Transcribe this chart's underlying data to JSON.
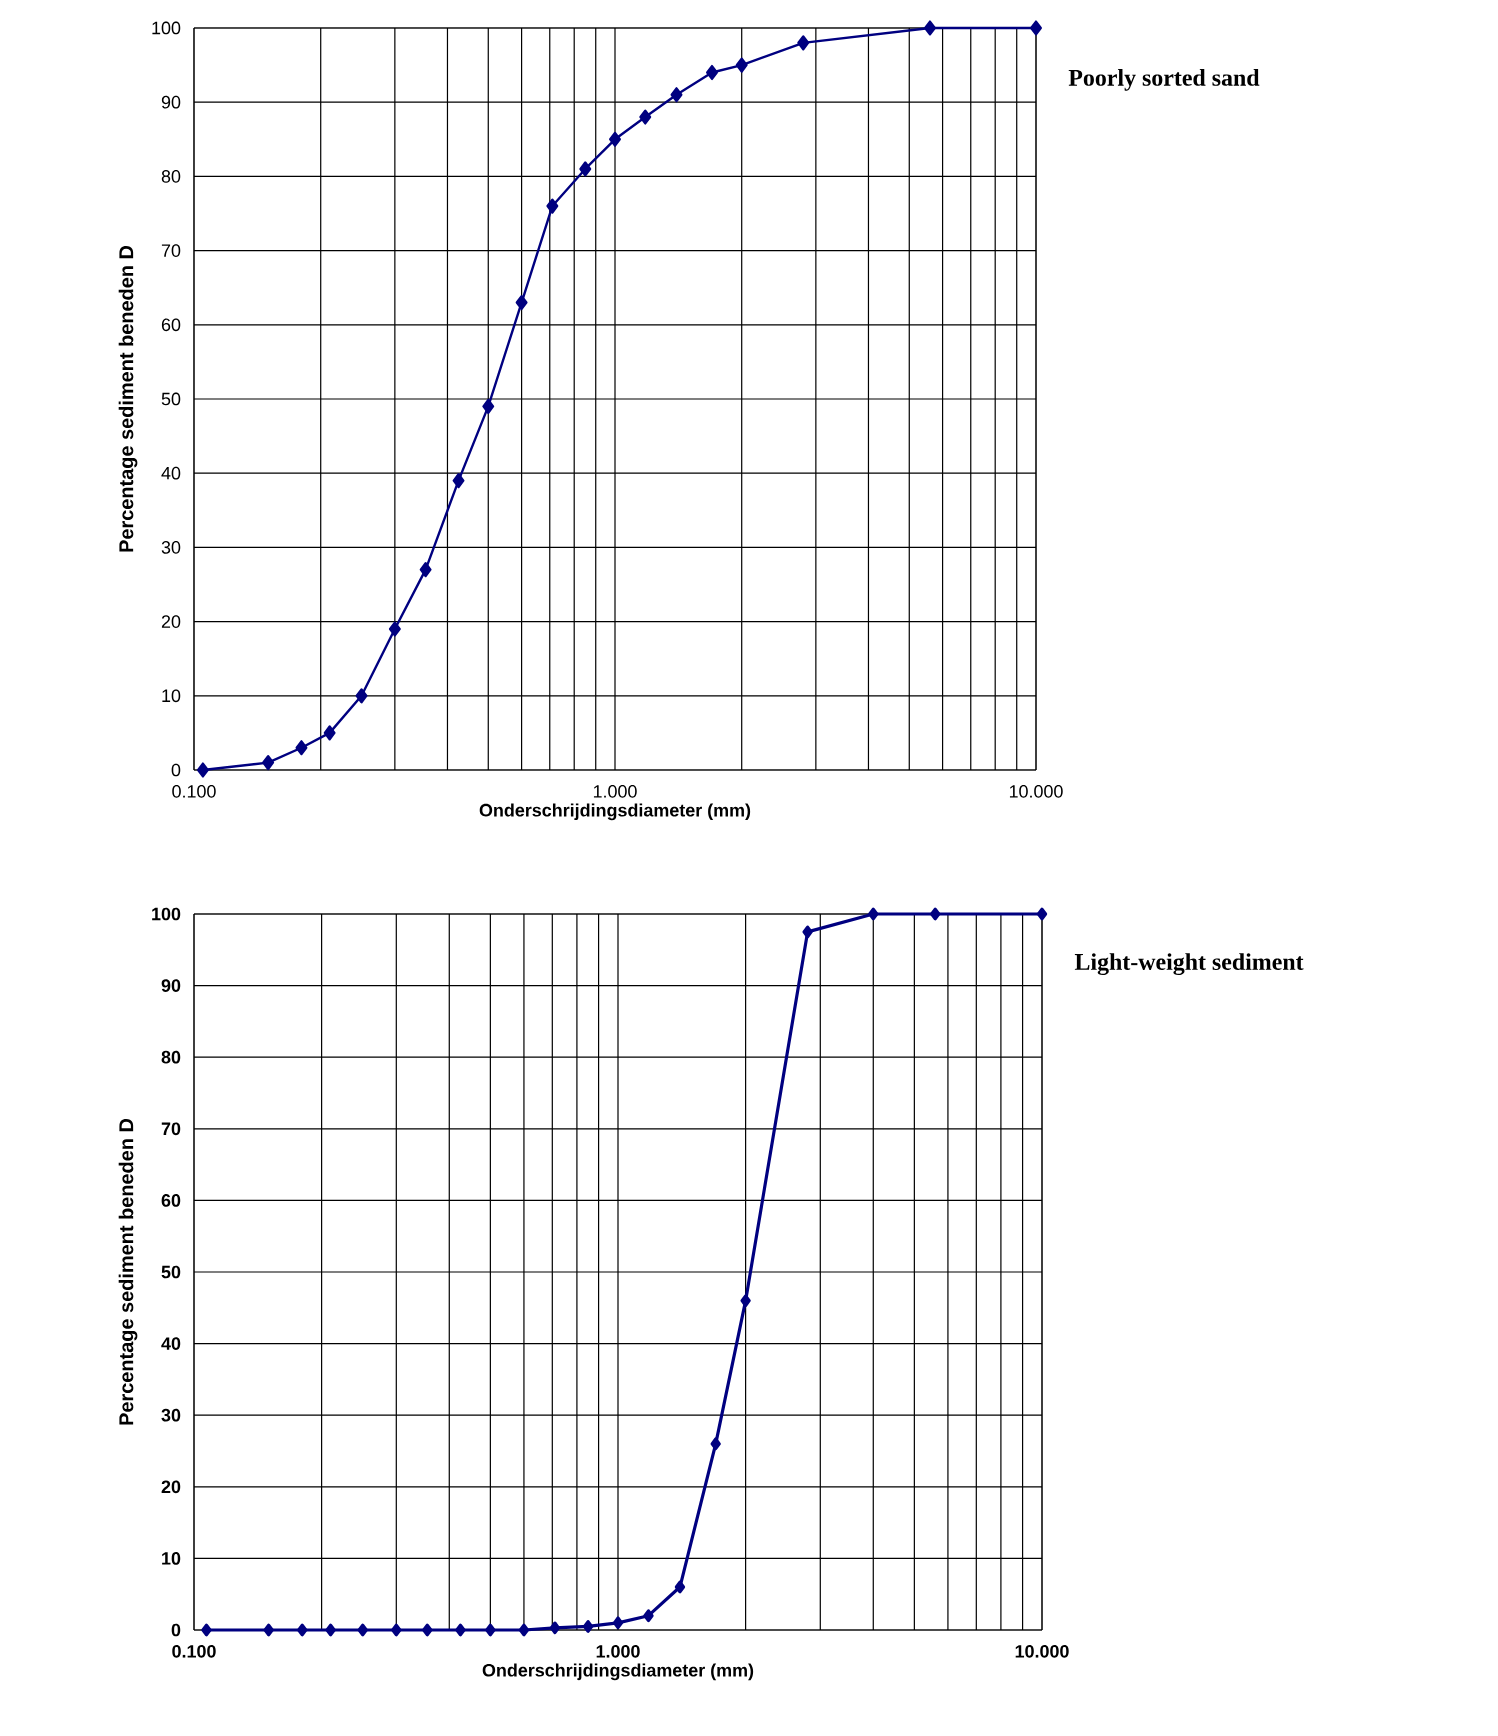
{
  "chart_data": [
    {
      "type": "line",
      "title": "Poorly sorted sand",
      "xlabel": "Onderschrijdingsdiameter (mm)",
      "ylabel": "Percentage sediment beneden D",
      "log": "x",
      "grid": true,
      "marker": "diamond",
      "line_style": "solid",
      "xlim": [
        0.1,
        10
      ],
      "ylim": [
        0,
        100
      ],
      "xticks": [
        {
          "value": 0.1,
          "label": "0.100"
        },
        {
          "value": 1,
          "label": "1.000"
        },
        {
          "value": 10,
          "label": "10.000"
        }
      ],
      "yticks": [
        0,
        10,
        20,
        30,
        40,
        50,
        60,
        70,
        80,
        90,
        100
      ],
      "series": [
        {
          "color": "#000080",
          "x": [
            0.105,
            0.15,
            0.18,
            0.21,
            0.25,
            0.3,
            0.355,
            0.425,
            0.5,
            0.6,
            0.71,
            0.85,
            1.0,
            1.18,
            1.4,
            1.7,
            2.0,
            2.8,
            5.6,
            10
          ],
          "values": [
            0,
            1,
            3,
            5,
            10,
            19,
            27,
            39,
            49,
            63,
            76,
            81,
            85,
            88,
            91,
            94,
            95,
            98,
            100,
            100
          ]
        }
      ]
    },
    {
      "type": "line",
      "title": "Light-weight sediment",
      "xlabel": "Onderschrijdingsdiameter (mm)",
      "ylabel": "Percentage sediment beneden D",
      "log": "x",
      "grid": true,
      "marker": "diamond",
      "line_style": "solid",
      "xlim": [
        0.1,
        10
      ],
      "ylim": [
        0,
        100
      ],
      "xticks": [
        {
          "value": 0.1,
          "label": "0.100"
        },
        {
          "value": 1,
          "label": "1.000"
        },
        {
          "value": 10,
          "label": "10.000"
        }
      ],
      "yticks": [
        0,
        10,
        20,
        30,
        40,
        50,
        60,
        70,
        80,
        90,
        100
      ],
      "series": [
        {
          "color": "#000080",
          "x": [
            0.107,
            0.15,
            0.18,
            0.21,
            0.25,
            0.3,
            0.355,
            0.425,
            0.5,
            0.6,
            0.71,
            0.85,
            1.0,
            1.18,
            1.4,
            1.7,
            2.0,
            2.8,
            4.0,
            5.6,
            10
          ],
          "values": [
            0,
            0,
            0,
            0,
            0,
            0,
            0,
            0,
            0,
            0,
            0.3,
            0.5,
            1,
            2,
            6,
            26,
            46,
            97.5,
            100,
            100,
            100
          ]
        }
      ]
    }
  ]
}
